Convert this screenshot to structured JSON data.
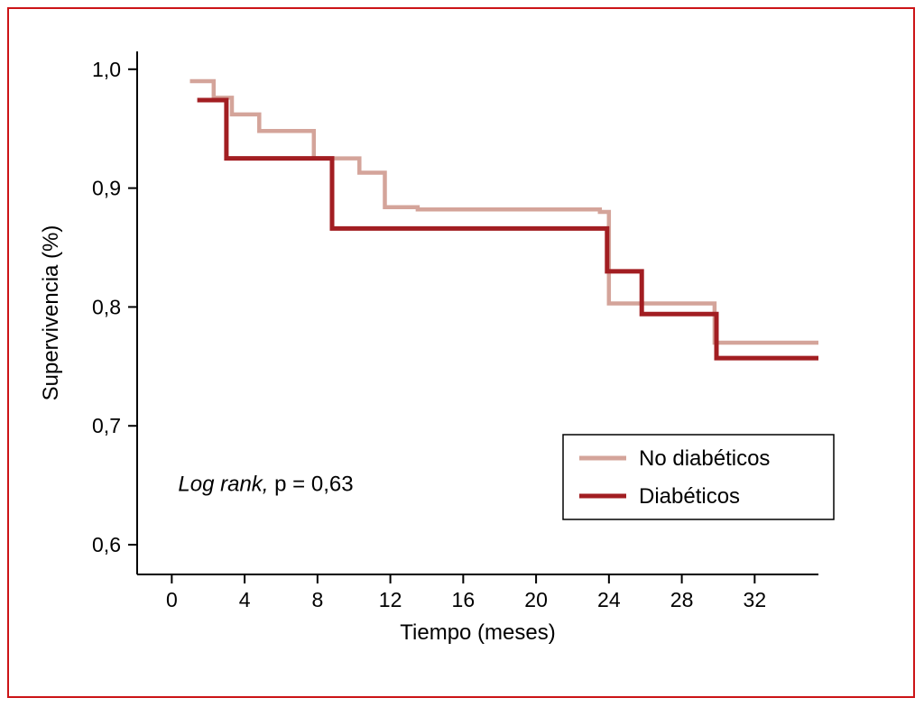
{
  "figure": {
    "background": "#ffffff",
    "border_color": "#cc1417"
  },
  "chart_data": {
    "type": "line",
    "subtype": "kaplan-meier-step-survival",
    "title": "",
    "xlabel": "Tiempo (meses)",
    "ylabel": "Supervivencia (%)",
    "xlim": [
      -1.9,
      35.5
    ],
    "ylim": [
      0.575,
      1.015
    ],
    "grid": false,
    "xticks": {
      "values": [
        0,
        4,
        8,
        12,
        16,
        20,
        24,
        28,
        32
      ],
      "labels": [
        "0",
        "4",
        "8",
        "12",
        "16",
        "20",
        "24",
        "28",
        "32"
      ]
    },
    "yticks": {
      "values": [
        0.6,
        0.7,
        0.8,
        0.9,
        1.0
      ],
      "labels": [
        "0,6",
        "0,7",
        "0,8",
        "0,9",
        "1,0"
      ]
    },
    "annotation": {
      "italic_part": "Log rank,",
      "plain_part": " p = 0,63",
      "x": 0.35,
      "y": 0.645
    },
    "legend": {
      "position": "lower-right",
      "border": true,
      "entries": [
        "No diabéticos",
        "Diabéticos"
      ]
    },
    "series": [
      {
        "name": "No diabéticos",
        "color": "#d4a49a",
        "stroke_width": 4.5,
        "points": [
          [
            1.0,
            0.99
          ],
          [
            2.3,
            0.99
          ],
          [
            2.3,
            0.976
          ],
          [
            3.3,
            0.976
          ],
          [
            3.3,
            0.962
          ],
          [
            4.8,
            0.962
          ],
          [
            4.8,
            0.948
          ],
          [
            7.8,
            0.948
          ],
          [
            7.8,
            0.925
          ],
          [
            10.3,
            0.925
          ],
          [
            10.3,
            0.913
          ],
          [
            11.7,
            0.913
          ],
          [
            11.7,
            0.884
          ],
          [
            13.5,
            0.884
          ],
          [
            13.5,
            0.882
          ],
          [
            23.5,
            0.882
          ],
          [
            23.5,
            0.88
          ],
          [
            24.0,
            0.88
          ],
          [
            24.0,
            0.803
          ],
          [
            29.8,
            0.803
          ],
          [
            29.8,
            0.77
          ],
          [
            35.5,
            0.77
          ]
        ]
      },
      {
        "name": "Diabéticos",
        "color": "#a21e22",
        "stroke_width": 5,
        "points": [
          [
            1.4,
            0.974
          ],
          [
            3.0,
            0.974
          ],
          [
            3.0,
            0.925
          ],
          [
            8.8,
            0.925
          ],
          [
            8.8,
            0.866
          ],
          [
            23.9,
            0.866
          ],
          [
            23.9,
            0.83
          ],
          [
            25.8,
            0.83
          ],
          [
            25.8,
            0.794
          ],
          [
            29.9,
            0.794
          ],
          [
            29.9,
            0.757
          ],
          [
            35.5,
            0.757
          ]
        ]
      }
    ]
  }
}
